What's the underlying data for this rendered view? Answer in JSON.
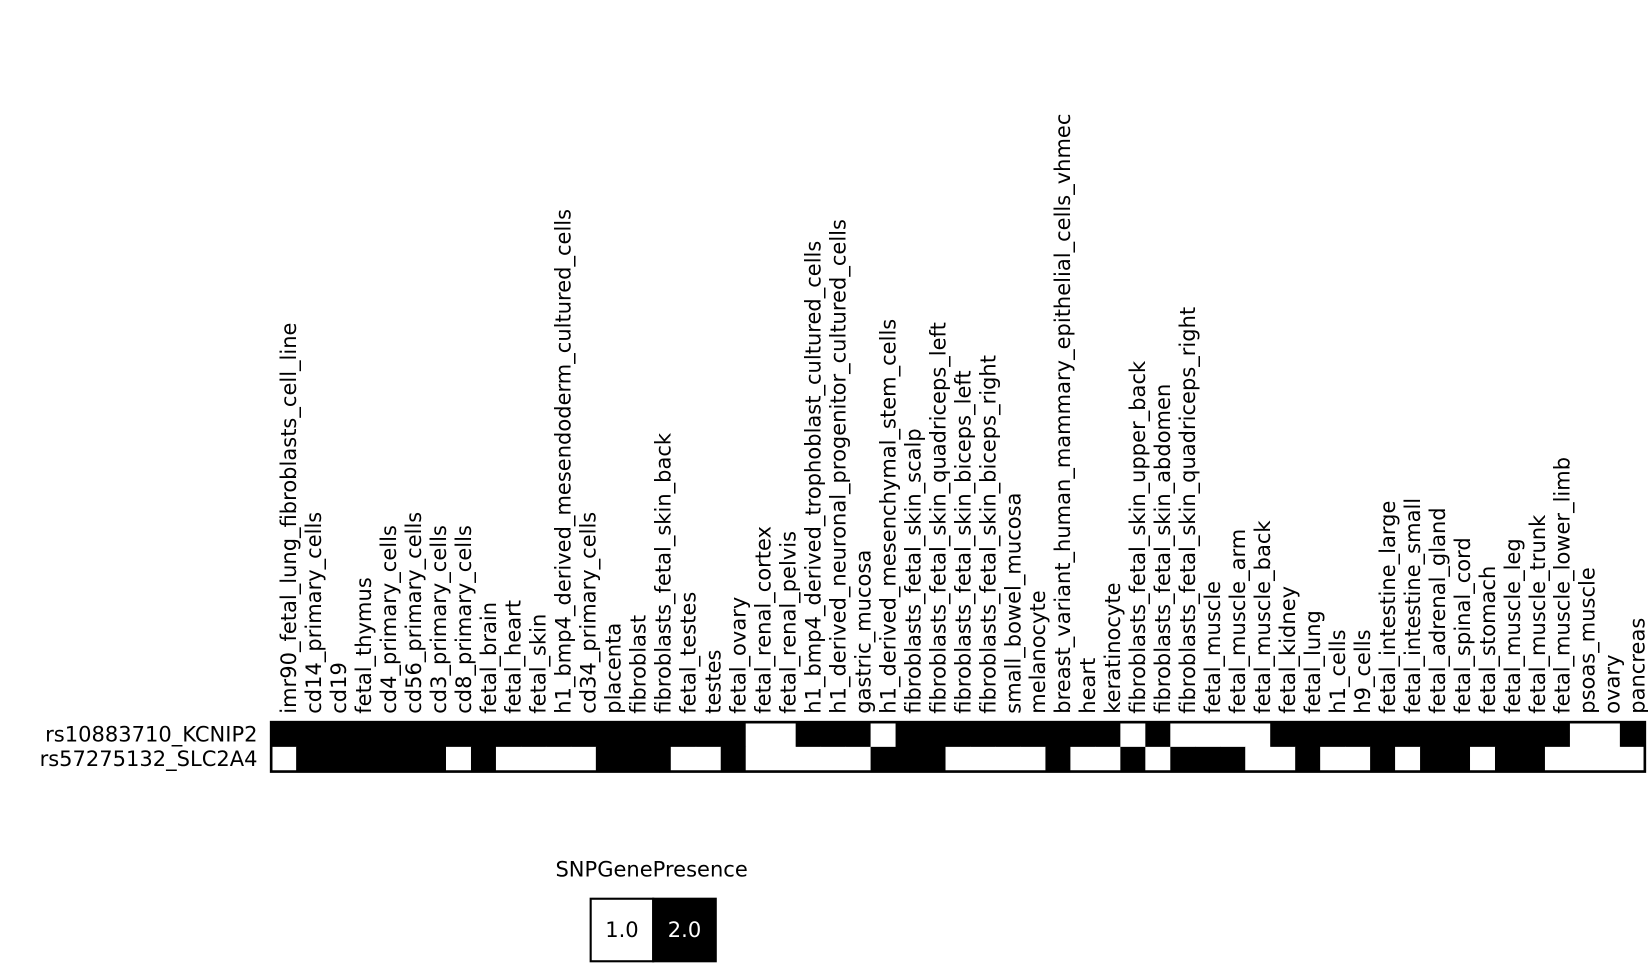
{
  "chart_data": {
    "type": "heatmap",
    "x": [
      "imr90_fetal_lung_fibroblasts_cell_line",
      "cd14_primary_cells",
      "cd19",
      "fetal_thymus",
      "cd4_primary_cells",
      "cd56_primary_cells",
      "cd3_primary_cells",
      "cd8_primary_cells",
      "fetal_brain",
      "fetal_heart",
      "fetal_skin",
      "h1_bmp4_derived_mesendoderm_cultured_cells",
      "cd34_primary_cells",
      "placenta",
      "fibroblast",
      "fibroblasts_fetal_skin_back",
      "fetal_testes",
      "testes",
      "fetal_ovary",
      "fetal_renal_cortex",
      "fetal_renal_pelvis",
      "h1_bmp4_derived_trophoblast_cultured_cells",
      "h1_derived_neuronal_progenitor_cultured_cells",
      "gastric_mucosa",
      "h1_derived_mesenchymal_stem_cells",
      "fibroblasts_fetal_skin_scalp",
      "fibroblasts_fetal_skin_quadriceps_left",
      "fibroblasts_fetal_skin_biceps_left",
      "fibroblasts_fetal_skin_biceps_right",
      "small_bowel_mucosa",
      "melanocyte",
      "breast_variant_human_mammary_epithelial_cells_vhmec",
      "heart",
      "keratinocyte",
      "fibroblasts_fetal_skin_upper_back",
      "fibroblasts_fetal_skin_abdomen",
      "fibroblasts_fetal_skin_quadriceps_right",
      "fetal_muscle",
      "fetal_muscle_arm",
      "fetal_muscle_back",
      "fetal_kidney",
      "fetal_lung",
      "h1_cells",
      "h9_cells",
      "fetal_intestine_large",
      "fetal_intestine_small",
      "fetal_adrenal_gland",
      "fetal_spinal_cord",
      "fetal_stomach",
      "fetal_muscle_leg",
      "fetal_muscle_trunk",
      "fetal_muscle_lower_limb",
      "psoas_muscle",
      "ovary",
      "pancreas"
    ],
    "y": [
      "rs10883710_KCNIP2",
      "rs57275132_SLC2A4"
    ],
    "z": [
      [
        2,
        2,
        2,
        2,
        2,
        2,
        2,
        2,
        2,
        2,
        2,
        2,
        2,
        2,
        2,
        2,
        2,
        2,
        2,
        1,
        1,
        2,
        2,
        2,
        1,
        2,
        2,
        2,
        2,
        2,
        2,
        2,
        2,
        2,
        1,
        2,
        1,
        1,
        1,
        1,
        2,
        2,
        2,
        2,
        2,
        2,
        2,
        2,
        2,
        2,
        2,
        2,
        1,
        1,
        2
      ],
      [
        1,
        2,
        2,
        2,
        2,
        2,
        2,
        1,
        2,
        1,
        1,
        1,
        1,
        2,
        2,
        2,
        1,
        1,
        2,
        1,
        1,
        1,
        1,
        1,
        2,
        2,
        2,
        1,
        1,
        1,
        1,
        2,
        1,
        1,
        2,
        1,
        2,
        2,
        2,
        1,
        1,
        2,
        1,
        1,
        2,
        1,
        2,
        2,
        1,
        2,
        2,
        1,
        1,
        1,
        1
      ]
    ],
    "legend": {
      "title": "SNPGenePresence",
      "items": [
        {
          "value": 1,
          "label": "1.0",
          "color": "#ffffff"
        },
        {
          "value": 2,
          "label": "2.0",
          "color": "#000000"
        }
      ]
    }
  }
}
